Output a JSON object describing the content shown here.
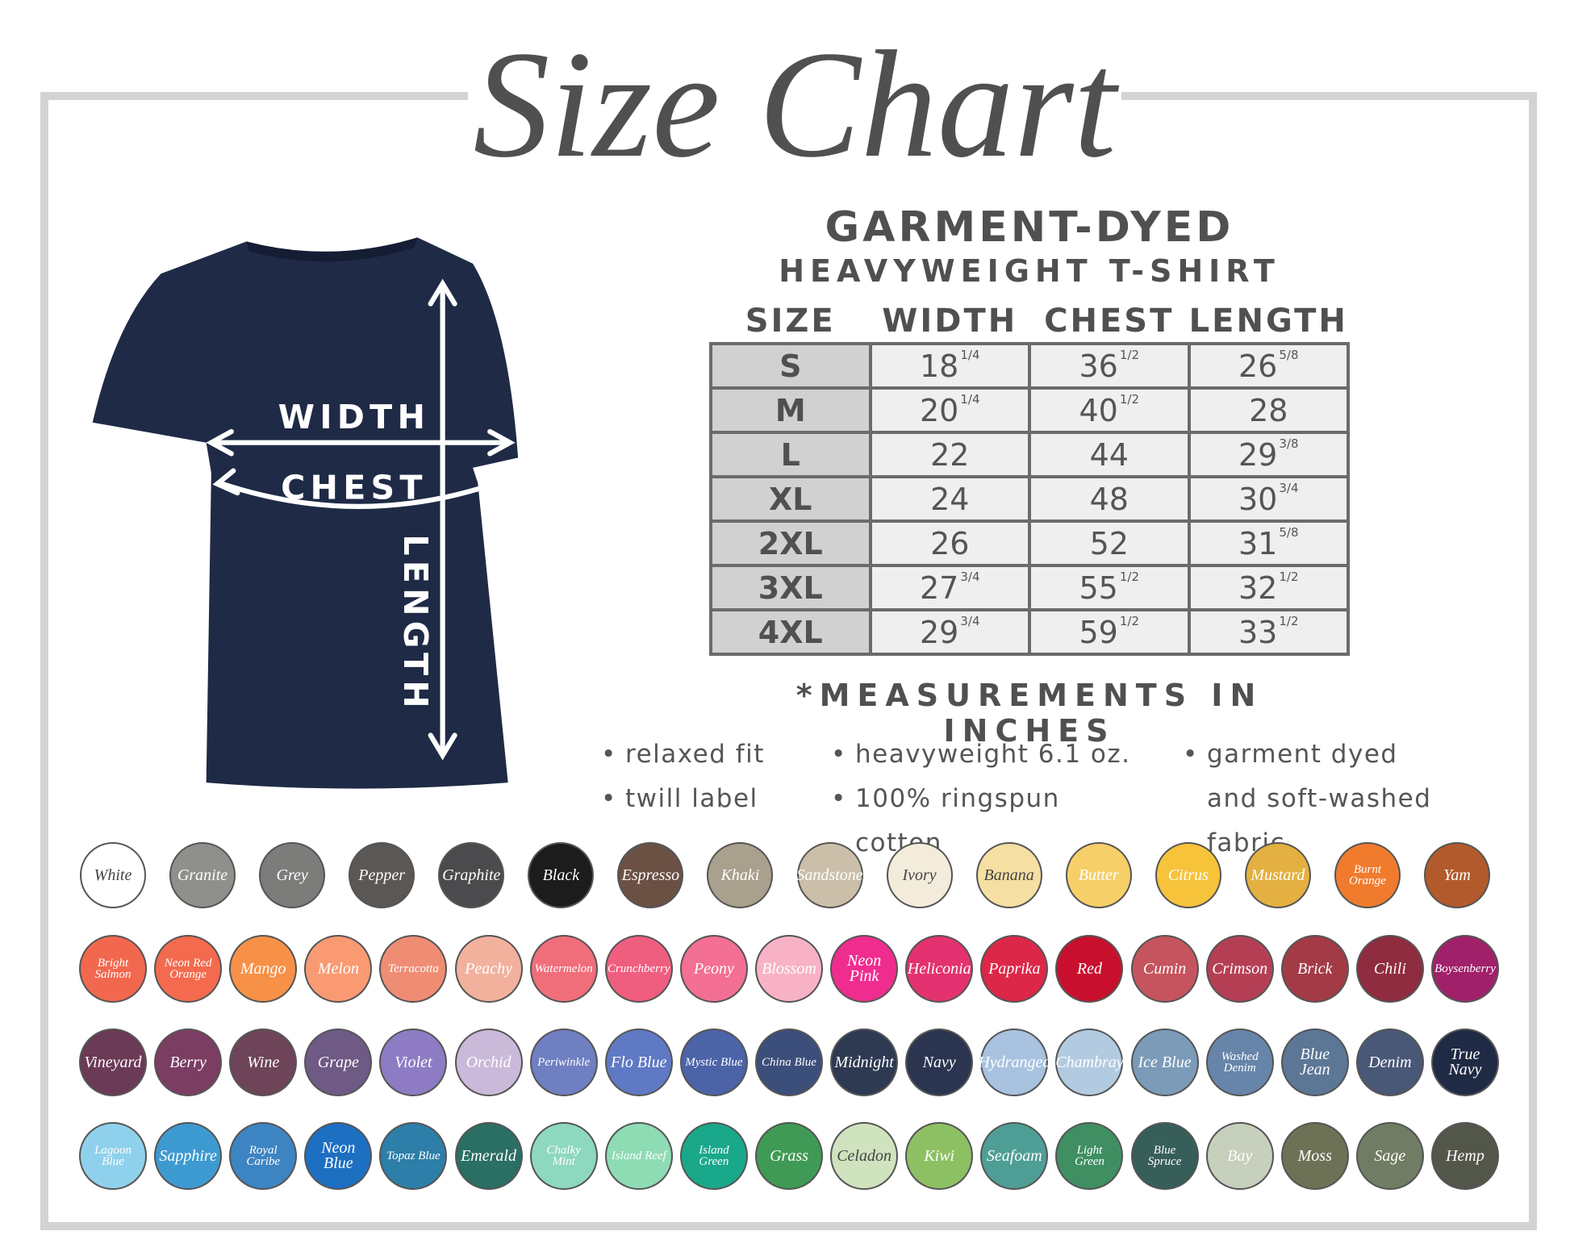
{
  "title": "Size Chart",
  "product": {
    "line1": "GARMENT-DYED",
    "line2": "HEAVYWEIGHT T-SHIRT"
  },
  "shirt_labels": {
    "width": "WIDTH",
    "chest": "CHEST",
    "length": "LENGTH"
  },
  "table": {
    "header": [
      "SIZE",
      "WIDTH",
      "CHEST",
      "LENGTH"
    ],
    "rows": [
      [
        [
          "S"
        ],
        [
          "18",
          "1/4"
        ],
        [
          "36",
          "1/2"
        ],
        [
          "26",
          "5/8"
        ]
      ],
      [
        [
          "M"
        ],
        [
          "20",
          "1/4"
        ],
        [
          "40",
          "1/2"
        ],
        [
          "28"
        ]
      ],
      [
        [
          "L"
        ],
        [
          "22"
        ],
        [
          "44"
        ],
        [
          "29",
          "3/8"
        ]
      ],
      [
        [
          "XL"
        ],
        [
          "24"
        ],
        [
          "48"
        ],
        [
          "30",
          "3/4"
        ]
      ],
      [
        [
          "2XL"
        ],
        [
          "26"
        ],
        [
          "52"
        ],
        [
          "31",
          "5/8"
        ]
      ],
      [
        [
          "3XL"
        ],
        [
          "27",
          "3/4"
        ],
        [
          "55",
          "1/2"
        ],
        [
          "32",
          "1/2"
        ]
      ],
      [
        [
          "4XL"
        ],
        [
          "29",
          "3/4"
        ],
        [
          "59",
          "1/2"
        ],
        [
          "33",
          "1/2"
        ]
      ]
    ]
  },
  "note": "*MEASUREMENTS IN INCHES",
  "features": [
    [
      "relaxed fit",
      "twill label"
    ],
    [
      "heavyweight 6.1 oz.",
      "100% ringspun cotton"
    ],
    [
      "garment dyed and soft-washed fabric"
    ]
  ],
  "swatches": [
    [
      {
        "name": "White",
        "color": "#ffffff"
      },
      {
        "name": "Granite",
        "color": "#8f8f8c"
      },
      {
        "name": "Grey",
        "color": "#7c7c7a"
      },
      {
        "name": "Pepper",
        "color": "#5b5755"
      },
      {
        "name": "Graphite",
        "color": "#4b4a4c"
      },
      {
        "name": "Black",
        "color": "#1c1c1c"
      },
      {
        "name": "Espresso",
        "color": "#6b5044"
      },
      {
        "name": "Khaki",
        "color": "#a9a08d"
      },
      {
        "name": "Sandstone",
        "color": "#cbbfaa"
      },
      {
        "name": "Ivory",
        "color": "#f3ecdc"
      },
      {
        "name": "Banana",
        "color": "#f5dfa2"
      },
      {
        "name": "Butter",
        "color": "#f7cf68"
      },
      {
        "name": "Citrus",
        "color": "#f6c33b"
      },
      {
        "name": "Mustard",
        "color": "#e3b041"
      },
      {
        "name": "Burnt Orange",
        "color": "#f07b2d"
      },
      {
        "name": "Yam",
        "color": "#b25a2b"
      }
    ],
    [
      {
        "name": "Bright Salmon",
        "color": "#f2684f"
      },
      {
        "name": "Neon Red Orange",
        "color": "#f46a4e"
      },
      {
        "name": "Mango",
        "color": "#f79148"
      },
      {
        "name": "Melon",
        "color": "#f99a73"
      },
      {
        "name": "Terracotta",
        "color": "#ef8d74"
      },
      {
        "name": "Peachy",
        "color": "#f2b19d"
      },
      {
        "name": "Watermelon",
        "color": "#ef6e7a"
      },
      {
        "name": "Crunchberry",
        "color": "#ef5e7f"
      },
      {
        "name": "Peony",
        "color": "#f36f93"
      },
      {
        "name": "Blossom",
        "color": "#f8b2c6"
      },
      {
        "name": "Neon Pink",
        "color": "#ef2d8f"
      },
      {
        "name": "Heliconia",
        "color": "#e3326f"
      },
      {
        "name": "Paprika",
        "color": "#dc2749"
      },
      {
        "name": "Red",
        "color": "#c8102e"
      },
      {
        "name": "Cumin",
        "color": "#c5545e"
      },
      {
        "name": "Crimson",
        "color": "#b43f55"
      },
      {
        "name": "Brick",
        "color": "#a33b47"
      },
      {
        "name": "Chili",
        "color": "#8f2c3f"
      },
      {
        "name": "Boysenberry",
        "color": "#a0216a"
      }
    ],
    [
      {
        "name": "Vineyard",
        "color": "#6b3a57"
      },
      {
        "name": "Berry",
        "color": "#7c3d63"
      },
      {
        "name": "Wine",
        "color": "#6d4458"
      },
      {
        "name": "Grape",
        "color": "#6e5a84"
      },
      {
        "name": "Violet",
        "color": "#8d7cc4"
      },
      {
        "name": "Orchid",
        "color": "#cbb9d9"
      },
      {
        "name": "Periwinkle",
        "color": "#6f7fc2"
      },
      {
        "name": "Flo Blue",
        "color": "#5f79c4"
      },
      {
        "name": "Mystic Blue",
        "color": "#4c63a8"
      },
      {
        "name": "China Blue",
        "color": "#3c4e7a"
      },
      {
        "name": "Midnight",
        "color": "#2d3a52"
      },
      {
        "name": "Navy",
        "color": "#2b3550"
      },
      {
        "name": "Hydrangea",
        "color": "#a8c2e0"
      },
      {
        "name": "Chambray",
        "color": "#b2cbe0"
      },
      {
        "name": "Ice Blue",
        "color": "#7b9bb8"
      },
      {
        "name": "Washed Denim",
        "color": "#6685a8"
      },
      {
        "name": "Blue Jean",
        "color": "#5c7696"
      },
      {
        "name": "Denim",
        "color": "#4a5877"
      },
      {
        "name": "True Navy",
        "color": "#1f2a44"
      }
    ],
    [
      {
        "name": "Lagoon Blue",
        "color": "#8fd1ec"
      },
      {
        "name": "Sapphire",
        "color": "#3d9ad1"
      },
      {
        "name": "Royal Caribe",
        "color": "#3d84c2"
      },
      {
        "name": "Neon Blue",
        "color": "#1d6fc1"
      },
      {
        "name": "Topaz Blue",
        "color": "#2d7ea8"
      },
      {
        "name": "Emerald",
        "color": "#2a6e64"
      },
      {
        "name": "Chalky Mint",
        "color": "#8ed8c0"
      },
      {
        "name": "Island Reef",
        "color": "#8edcb4"
      },
      {
        "name": "Island Green",
        "color": "#1aa88a"
      },
      {
        "name": "Grass",
        "color": "#3f9a55"
      },
      {
        "name": "Celadon",
        "color": "#cfe3be"
      },
      {
        "name": "Kiwi",
        "color": "#8dc063"
      },
      {
        "name": "Seafoam",
        "color": "#4f9e96"
      },
      {
        "name": "Light Green",
        "color": "#3f8f63"
      },
      {
        "name": "Blue Spruce",
        "color": "#375e59"
      },
      {
        "name": "Bay",
        "color": "#c7cfbd"
      },
      {
        "name": "Moss",
        "color": "#6d7257"
      },
      {
        "name": "Sage",
        "color": "#707c63"
      },
      {
        "name": "Hemp",
        "color": "#53574a"
      }
    ]
  ]
}
